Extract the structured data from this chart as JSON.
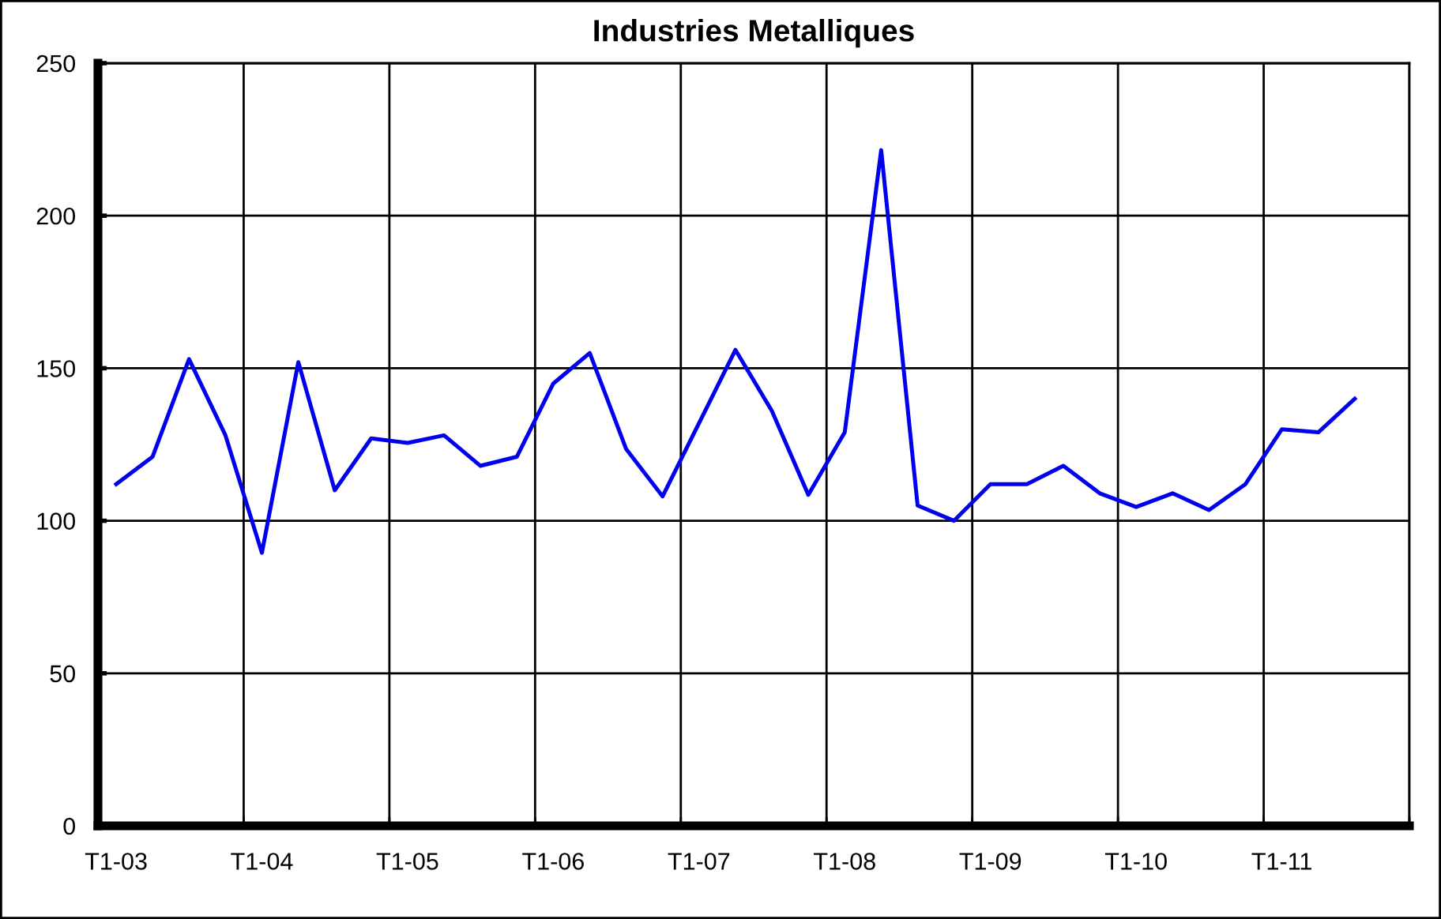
{
  "chart_data": {
    "type": "line",
    "title": "Industries Metalliques",
    "categories": [
      "T1-03",
      null,
      null,
      null,
      "T1-04",
      null,
      null,
      null,
      "T1-05",
      null,
      null,
      null,
      "T1-06",
      null,
      null,
      null,
      "T1-07",
      null,
      null,
      null,
      "T1-08",
      null,
      null,
      null,
      "T1-09",
      null,
      null,
      null,
      "T1-10",
      null,
      null,
      null,
      "T1-11",
      null,
      null,
      null
    ],
    "series": [
      {
        "color": "#0000ee",
        "values": [
          112,
          121,
          153,
          128,
          89.5,
          152,
          110,
          127,
          125.5,
          128,
          118,
          121,
          145,
          155,
          123.5,
          108,
          132,
          156,
          136,
          108.5,
          129,
          221.5,
          105,
          100,
          112,
          112,
          118,
          109,
          104.5,
          109,
          103.5,
          112,
          130,
          129,
          140,
          null
        ]
      }
    ],
    "ylim": [
      0,
      250
    ],
    "yticks": [
      0,
      50,
      100,
      150,
      200,
      250
    ],
    "grid": true,
    "line_style": "solid",
    "marker": "none"
  }
}
